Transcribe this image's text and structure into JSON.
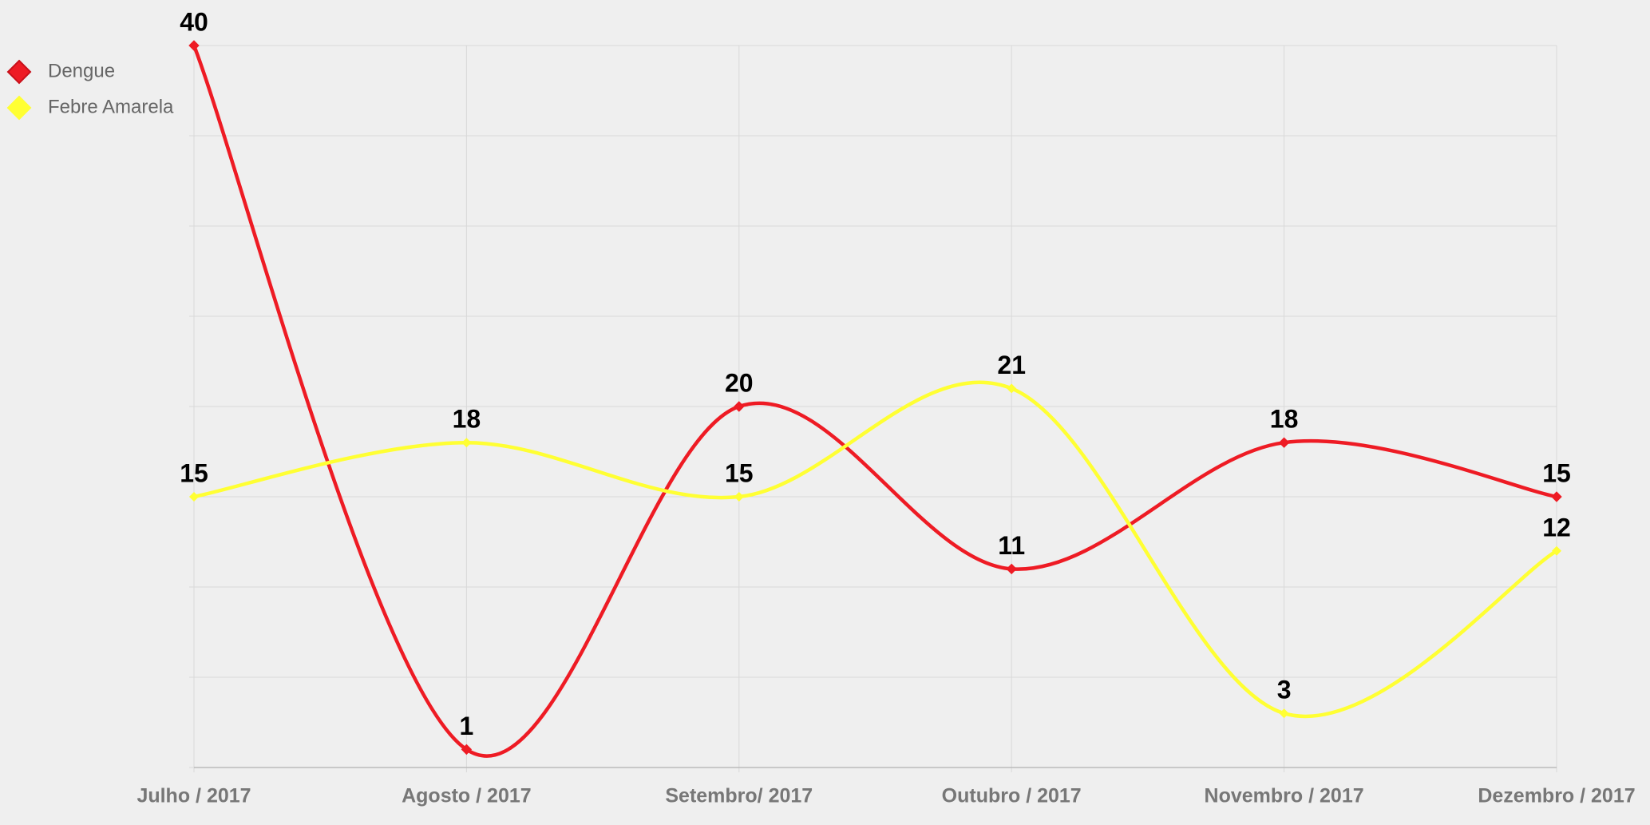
{
  "chart_data": {
    "type": "line",
    "categories": [
      "Julho / 2017",
      "Agosto / 2017",
      "Setembro/ 2017",
      "Outubro / 2017",
      "Novembro / 2017",
      "Dezembro / 2017"
    ],
    "series": [
      {
        "name": "Dengue",
        "color": "#ee1b24",
        "values": [
          40,
          1,
          20,
          11,
          18,
          15
        ]
      },
      {
        "name": "Febre Amarela",
        "color": "#ffff33",
        "values": [
          15,
          18,
          15,
          21,
          3,
          12
        ]
      }
    ],
    "ylim": [
      0,
      40
    ],
    "yticks": [
      0,
      5,
      10,
      15,
      20,
      25,
      30,
      35,
      40
    ],
    "show_ytick_labels": false,
    "grid": true,
    "smooth": true,
    "legend": "top-left"
  }
}
